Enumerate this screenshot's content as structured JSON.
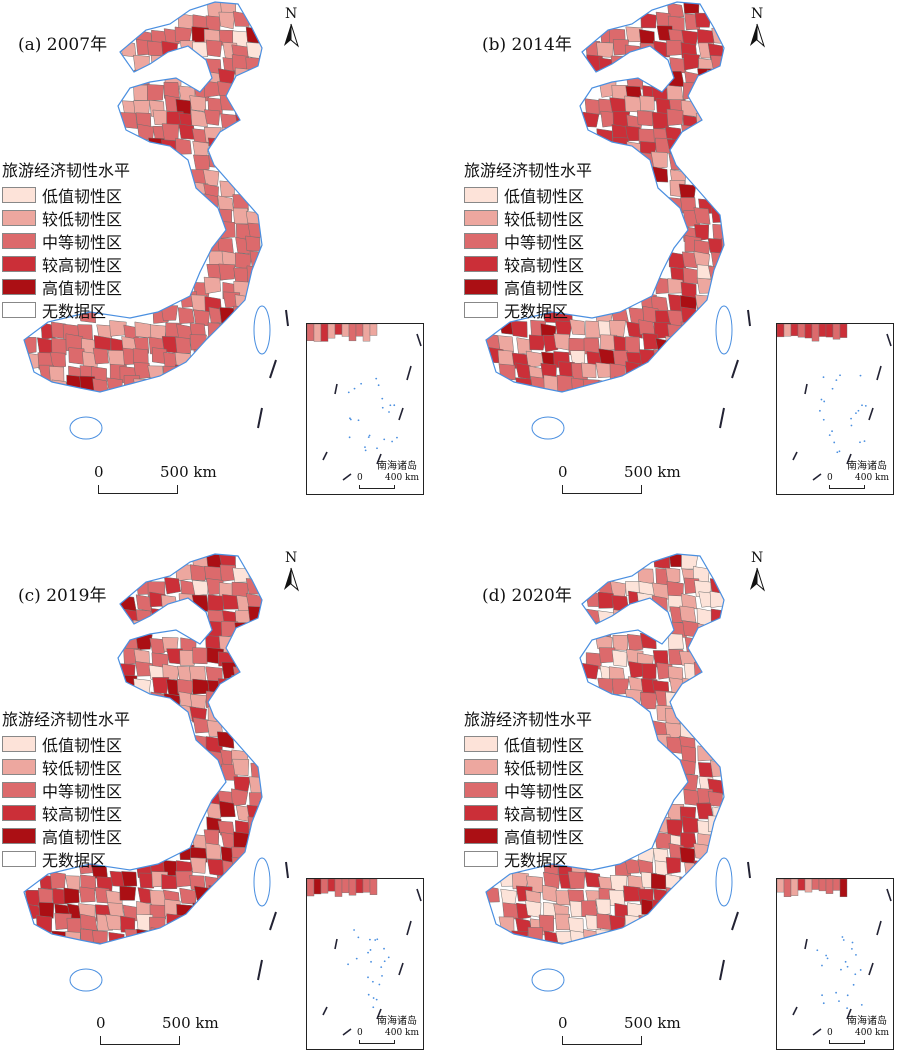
{
  "legend": {
    "title": "旅游经济韧性水平",
    "items": [
      {
        "label": "低值韧性区",
        "color": "#fde3d9"
      },
      {
        "label": "较低韧性区",
        "color": "#eda79f"
      },
      {
        "label": "中等韧性区",
        "color": "#dc6a6c"
      },
      {
        "label": "较高韧性区",
        "color": "#cb2f38"
      },
      {
        "label": "高值韧性区",
        "color": "#ab0f14"
      },
      {
        "label": "无数据区",
        "color": "#ffffff"
      }
    ]
  },
  "north_label": "N",
  "scalebar": {
    "zero": "0",
    "distance": "500 km"
  },
  "inset": {
    "label": "南海诸岛",
    "zero": "0",
    "distance": "400 km"
  },
  "panels": [
    {
      "title": "(a) 2007年",
      "level_shares": [
        0.02,
        0.3,
        0.5,
        0.13,
        0.05
      ]
    },
    {
      "title": "(b) 2014年",
      "level_shares": [
        0.03,
        0.2,
        0.37,
        0.33,
        0.07
      ]
    },
    {
      "title": "(c) 2019年",
      "level_shares": [
        0.02,
        0.22,
        0.34,
        0.26,
        0.16
      ]
    },
    {
      "title": "(d) 2020年",
      "level_shares": [
        0.18,
        0.26,
        0.28,
        0.24,
        0.04
      ]
    }
  ],
  "colors": {
    "coast": "#4a8fe0",
    "border": "#707070"
  }
}
